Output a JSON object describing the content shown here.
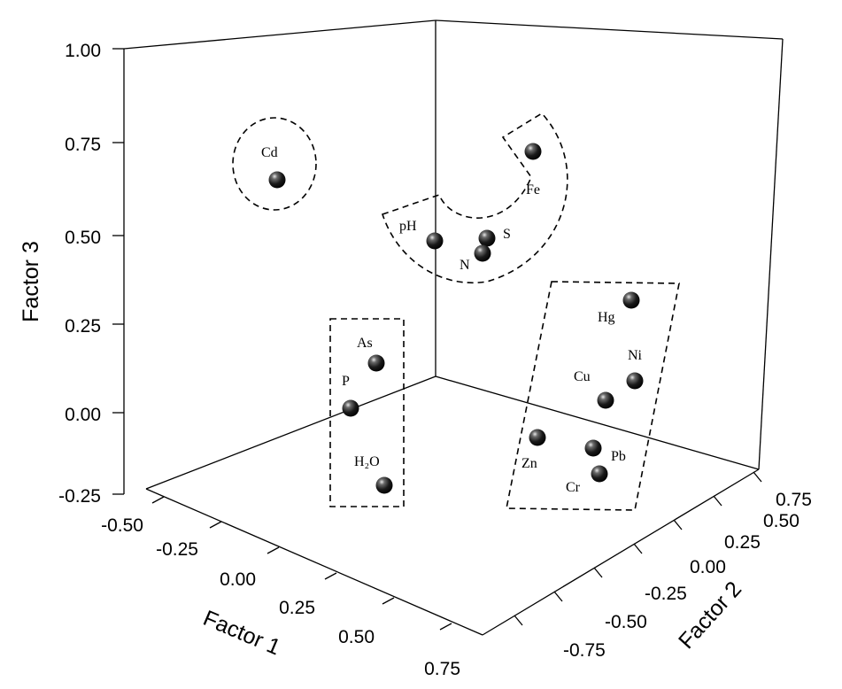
{
  "chart_data": {
    "type": "scatter",
    "dimensions": 3,
    "xlabel": "Factor 1",
    "ylabel": "Factor 2",
    "zlabel": "Factor 3",
    "xticks": [
      "-0.50",
      "-0.25",
      "0.00",
      "0.25",
      "0.50",
      "0.75"
    ],
    "yticks": [
      "-0.75",
      "-0.50",
      "-0.25",
      "0.00",
      "0.25",
      "0.50",
      "0.75"
    ],
    "zticks": [
      "-0.25",
      "0.00",
      "0.25",
      "0.50",
      "0.75",
      "1.00"
    ],
    "xlim": [
      -0.6,
      0.8
    ],
    "ylim": [
      -0.85,
      0.85
    ],
    "zlim": [
      -0.25,
      1.0
    ],
    "grid": false,
    "points": [
      {
        "label": "Cd",
        "x": -0.55,
        "y": 0.3,
        "z": 0.85
      },
      {
        "label": "pH",
        "x": 0.1,
        "y": 0.3,
        "z": 0.55
      },
      {
        "label": "S",
        "x": 0.05,
        "y": 0.6,
        "z": 0.55
      },
      {
        "label": "N",
        "x": 0.1,
        "y": 0.55,
        "z": 0.5
      },
      {
        "label": "Fe",
        "x": -0.05,
        "y": 0.8,
        "z": 0.8
      },
      {
        "label": "As",
        "x": 0.2,
        "y": -0.1,
        "z": 0.1
      },
      {
        "label": "P",
        "x": 0.2,
        "y": -0.25,
        "z": 0.0
      },
      {
        "label": "H₂O",
        "x": 0.5,
        "y": 0.0,
        "z": -0.1
      },
      {
        "label": "Hg",
        "x": 0.2,
        "y": 0.75,
        "z": 0.05
      },
      {
        "label": "Ni",
        "x": 0.4,
        "y": 0.75,
        "z": -0.15
      },
      {
        "label": "Cu",
        "x": 0.4,
        "y": 0.55,
        "z": -0.15
      },
      {
        "label": "Zn",
        "x": 0.7,
        "y": 0.25,
        "z": -0.1
      },
      {
        "label": "Pb",
        "x": 0.7,
        "y": 0.5,
        "z": -0.2
      },
      {
        "label": "Cr",
        "x": 0.8,
        "y": 0.45,
        "z": -0.25
      }
    ]
  }
}
